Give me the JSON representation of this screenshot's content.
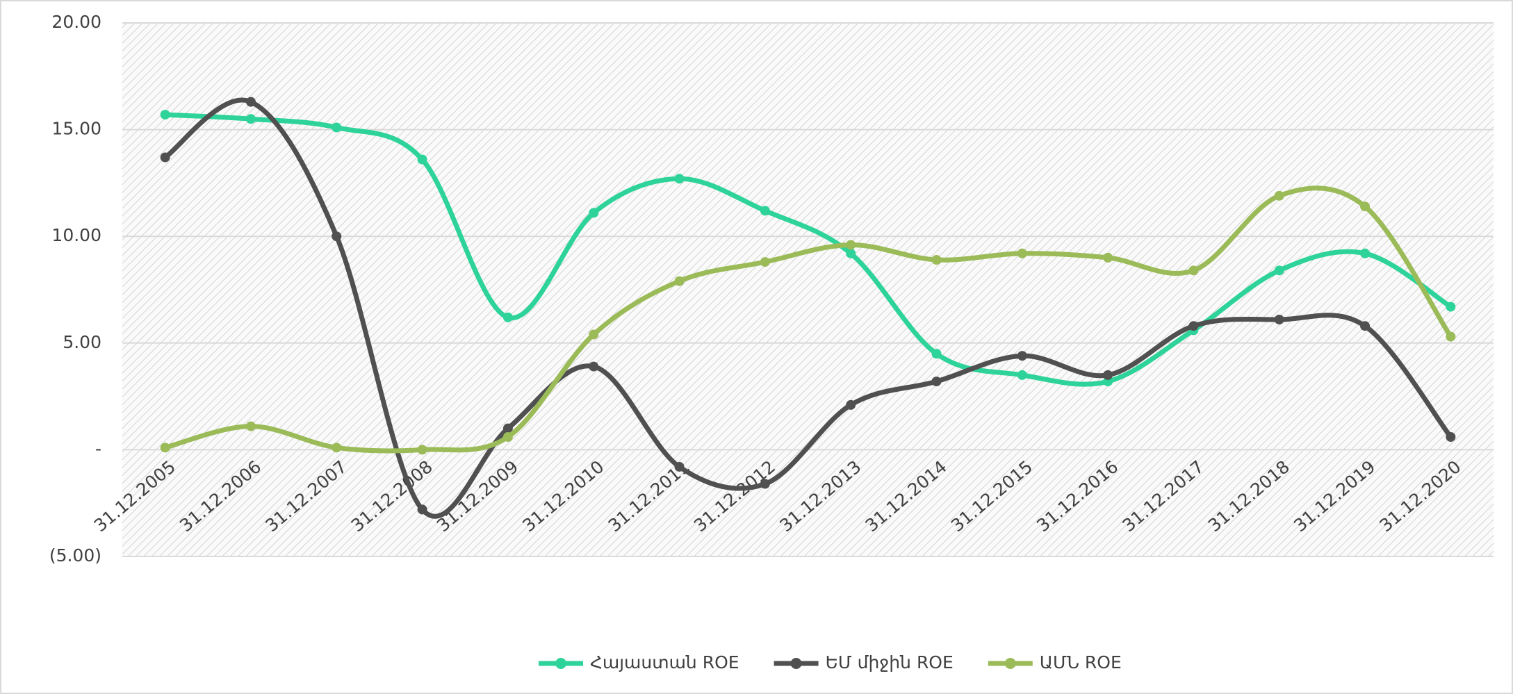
{
  "chart_data": {
    "type": "line",
    "categories": [
      "31.12.2005",
      "31.12.2006",
      "31.12.2007",
      "31.12.2008",
      "31.12.2009",
      "31.12.2010",
      "31.12.2011",
      "31.12.2012",
      "31.12.2013",
      "31.12.2014",
      "31.12.2015",
      "31.12.2016",
      "31.12.2017",
      "31.12.2018",
      "31.12.2019",
      "31.12.2020"
    ],
    "series": [
      {
        "name": "Հայաստան ROE",
        "color": "#2ed39a",
        "values": [
          15.7,
          15.5,
          15.1,
          13.6,
          6.2,
          11.1,
          12.7,
          11.2,
          9.2,
          4.5,
          3.5,
          3.2,
          5.6,
          8.4,
          9.2,
          6.7
        ]
      },
      {
        "name": "ԵՄ միջին ROE",
        "color": "#505050",
        "values": [
          13.7,
          16.3,
          10.0,
          -2.8,
          1.0,
          3.9,
          -0.8,
          -1.6,
          2.1,
          3.2,
          4.4,
          3.5,
          5.8,
          6.1,
          5.8,
          0.6
        ]
      },
      {
        "name": "ԱՄՆ ROE",
        "color": "#9bbb59",
        "values": [
          0.1,
          1.1,
          0.1,
          0.0,
          0.6,
          5.4,
          7.9,
          8.8,
          9.6,
          8.9,
          9.2,
          9.0,
          8.4,
          11.9,
          11.4,
          5.3
        ]
      }
    ],
    "ylim": [
      -5,
      20
    ],
    "yticks": [
      {
        "value": -5,
        "label": "(5.00)"
      },
      {
        "value": 0,
        "label": "-"
      },
      {
        "value": 5,
        "label": "5.00"
      },
      {
        "value": 10,
        "label": "10.00"
      },
      {
        "value": 15,
        "label": "15.00"
      },
      {
        "value": 20,
        "label": "20.00"
      }
    ],
    "grid": true,
    "legend": "bottom"
  }
}
